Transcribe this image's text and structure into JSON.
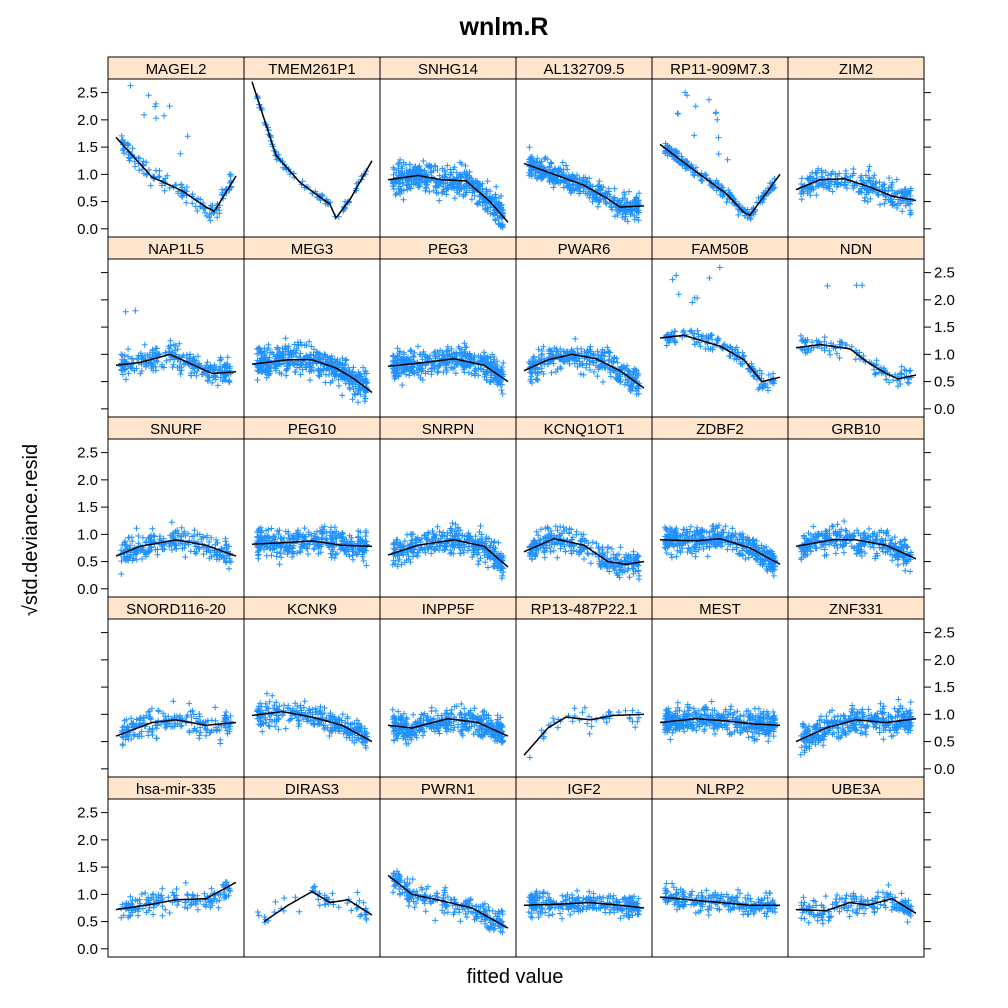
{
  "chart_data": {
    "type": "scatter",
    "title": "wnlm.R",
    "xlabel": "fitted value",
    "ylabel": "std.deviance.resid",
    "ylabel_prefix": "√",
    "ylim": [
      -0.15,
      2.75
    ],
    "y_ticks": [
      "0.0",
      "0.5",
      "1.0",
      "1.5",
      "2.0",
      "2.5"
    ],
    "layout": {
      "columns": 6,
      "rows": 5
    },
    "point_marker": "+",
    "point_color": "#1E90FF",
    "line_color": "#000000",
    "strip_color": "#FFE5CC",
    "grid": false,
    "panels": [
      {
        "name": "MAGEL2",
        "n": 140,
        "scatter": 0.22,
        "outliers": 10,
        "curve": [
          [
            0.0,
            1.68
          ],
          [
            0.3,
            0.95
          ],
          [
            0.55,
            0.7
          ],
          [
            0.75,
            0.4
          ],
          [
            0.82,
            0.32
          ],
          [
            1.0,
            0.97
          ]
        ]
      },
      {
        "name": "TMEM261P1",
        "n": 90,
        "scatter": 0.08,
        "outliers": 0,
        "curve": [
          [
            0.0,
            2.7
          ],
          [
            0.2,
            1.35
          ],
          [
            0.4,
            0.85
          ],
          [
            0.65,
            0.45
          ],
          [
            0.7,
            0.2
          ],
          [
            0.82,
            0.55
          ],
          [
            1.0,
            1.25
          ]
        ]
      },
      {
        "name": "SNHG14",
        "n": 480,
        "scatter": 0.35,
        "outliers": 0,
        "curve": [
          [
            0.0,
            0.9
          ],
          [
            0.25,
            0.98
          ],
          [
            0.45,
            0.9
          ],
          [
            0.65,
            0.88
          ],
          [
            0.85,
            0.5
          ],
          [
            1.0,
            0.12
          ]
        ]
      },
      {
        "name": "AL132709.5",
        "n": 420,
        "scatter": 0.28,
        "outliers": 0,
        "curve": [
          [
            0.0,
            1.2
          ],
          [
            0.25,
            1.0
          ],
          [
            0.5,
            0.8
          ],
          [
            0.7,
            0.55
          ],
          [
            0.8,
            0.4
          ],
          [
            1.0,
            0.42
          ]
        ]
      },
      {
        "name": "RP11-909M7.3",
        "n": 200,
        "scatter": 0.15,
        "outliers": 14,
        "curve": [
          [
            0.0,
            1.55
          ],
          [
            0.3,
            1.05
          ],
          [
            0.55,
            0.65
          ],
          [
            0.7,
            0.3
          ],
          [
            0.75,
            0.25
          ],
          [
            1.0,
            1.0
          ]
        ]
      },
      {
        "name": "ZIM2",
        "n": 260,
        "scatter": 0.3,
        "outliers": 0,
        "curve": [
          [
            0.0,
            0.72
          ],
          [
            0.2,
            0.9
          ],
          [
            0.4,
            0.92
          ],
          [
            0.6,
            0.78
          ],
          [
            0.8,
            0.6
          ],
          [
            1.0,
            0.52
          ]
        ]
      },
      {
        "name": "NAP1L5",
        "n": 260,
        "scatter": 0.3,
        "outliers": 2,
        "curve": [
          [
            0.0,
            0.8
          ],
          [
            0.2,
            0.85
          ],
          [
            0.45,
            1.0
          ],
          [
            0.6,
            0.85
          ],
          [
            0.8,
            0.65
          ],
          [
            1.0,
            0.68
          ]
        ]
      },
      {
        "name": "MEG3",
        "n": 480,
        "scatter": 0.35,
        "outliers": 0,
        "curve": [
          [
            0.0,
            0.82
          ],
          [
            0.3,
            0.9
          ],
          [
            0.5,
            0.9
          ],
          [
            0.7,
            0.75
          ],
          [
            0.85,
            0.55
          ],
          [
            1.0,
            0.3
          ]
        ]
      },
      {
        "name": "PEG3",
        "n": 440,
        "scatter": 0.32,
        "outliers": 0,
        "curve": [
          [
            0.0,
            0.78
          ],
          [
            0.3,
            0.85
          ],
          [
            0.55,
            0.92
          ],
          [
            0.8,
            0.8
          ],
          [
            1.0,
            0.5
          ]
        ]
      },
      {
        "name": "PWAR6",
        "n": 340,
        "scatter": 0.32,
        "outliers": 0,
        "curve": [
          [
            0.0,
            0.7
          ],
          [
            0.2,
            0.9
          ],
          [
            0.4,
            1.0
          ],
          [
            0.6,
            0.92
          ],
          [
            0.8,
            0.7
          ],
          [
            1.0,
            0.38
          ]
        ]
      },
      {
        "name": "FAM50B",
        "n": 160,
        "scatter": 0.2,
        "outliers": 8,
        "curve": [
          [
            0.0,
            1.3
          ],
          [
            0.2,
            1.35
          ],
          [
            0.5,
            1.15
          ],
          [
            0.7,
            0.9
          ],
          [
            0.85,
            0.5
          ],
          [
            1.0,
            0.58
          ]
        ]
      },
      {
        "name": "NDN",
        "n": 110,
        "scatter": 0.2,
        "outliers": 3,
        "curve": [
          [
            0.0,
            1.12
          ],
          [
            0.2,
            1.18
          ],
          [
            0.45,
            1.1
          ],
          [
            0.6,
            0.85
          ],
          [
            0.75,
            0.65
          ],
          [
            0.85,
            0.55
          ],
          [
            1.0,
            0.62
          ]
        ]
      },
      {
        "name": "SNURF",
        "n": 240,
        "scatter": 0.33,
        "outliers": 0,
        "curve": [
          [
            0.0,
            0.6
          ],
          [
            0.2,
            0.78
          ],
          [
            0.5,
            0.9
          ],
          [
            0.75,
            0.8
          ],
          [
            1.0,
            0.6
          ]
        ]
      },
      {
        "name": "PEG10",
        "n": 380,
        "scatter": 0.33,
        "outliers": 0,
        "curve": [
          [
            0.0,
            0.82
          ],
          [
            0.3,
            0.85
          ],
          [
            0.5,
            0.88
          ],
          [
            0.75,
            0.8
          ],
          [
            1.0,
            0.78
          ]
        ]
      },
      {
        "name": "SNRPN",
        "n": 400,
        "scatter": 0.32,
        "outliers": 0,
        "curve": [
          [
            0.0,
            0.62
          ],
          [
            0.25,
            0.8
          ],
          [
            0.55,
            0.9
          ],
          [
            0.8,
            0.78
          ],
          [
            1.0,
            0.4
          ]
        ]
      },
      {
        "name": "KCNQ1OT1",
        "n": 300,
        "scatter": 0.3,
        "outliers": 0,
        "curve": [
          [
            0.0,
            0.68
          ],
          [
            0.25,
            0.92
          ],
          [
            0.5,
            0.8
          ],
          [
            0.7,
            0.5
          ],
          [
            0.85,
            0.45
          ],
          [
            1.0,
            0.5
          ]
        ]
      },
      {
        "name": "ZDBF2",
        "n": 420,
        "scatter": 0.3,
        "outliers": 0,
        "curve": [
          [
            0.0,
            0.9
          ],
          [
            0.3,
            0.88
          ],
          [
            0.5,
            0.92
          ],
          [
            0.75,
            0.75
          ],
          [
            1.0,
            0.45
          ]
        ]
      },
      {
        "name": "GRB10",
        "n": 340,
        "scatter": 0.33,
        "outliers": 0,
        "curve": [
          [
            0.0,
            0.78
          ],
          [
            0.3,
            0.9
          ],
          [
            0.5,
            0.9
          ],
          [
            0.75,
            0.8
          ],
          [
            1.0,
            0.55
          ]
        ]
      },
      {
        "name": "SNORD116-20",
        "n": 200,
        "scatter": 0.3,
        "outliers": 0,
        "curve": [
          [
            0.0,
            0.6
          ],
          [
            0.3,
            0.85
          ],
          [
            0.5,
            0.9
          ],
          [
            0.75,
            0.8
          ],
          [
            1.0,
            0.85
          ]
        ]
      },
      {
        "name": "KCNK9",
        "n": 280,
        "scatter": 0.28,
        "outliers": 0,
        "curve": [
          [
            0.0,
            0.98
          ],
          [
            0.25,
            1.05
          ],
          [
            0.5,
            0.95
          ],
          [
            0.75,
            0.8
          ],
          [
            1.0,
            0.5
          ]
        ]
      },
      {
        "name": "INPP5F",
        "n": 420,
        "scatter": 0.3,
        "outliers": 0,
        "curve": [
          [
            0.0,
            0.8
          ],
          [
            0.2,
            0.75
          ],
          [
            0.5,
            0.92
          ],
          [
            0.75,
            0.85
          ],
          [
            1.0,
            0.6
          ]
        ]
      },
      {
        "name": "RP13-487P22.1",
        "n": 45,
        "scatter": 0.25,
        "outliers": 0,
        "curve": [
          [
            0.0,
            0.25
          ],
          [
            0.2,
            0.75
          ],
          [
            0.35,
            0.95
          ],
          [
            0.55,
            0.9
          ],
          [
            0.75,
            0.98
          ],
          [
            1.0,
            1.0
          ]
        ]
      },
      {
        "name": "MEST",
        "n": 440,
        "scatter": 0.32,
        "outliers": 0,
        "curve": [
          [
            0.0,
            0.85
          ],
          [
            0.3,
            0.92
          ],
          [
            0.55,
            0.88
          ],
          [
            0.8,
            0.82
          ],
          [
            1.0,
            0.8
          ]
        ]
      },
      {
        "name": "ZNF331",
        "n": 360,
        "scatter": 0.33,
        "outliers": 0,
        "curve": [
          [
            0.0,
            0.5
          ],
          [
            0.25,
            0.75
          ],
          [
            0.5,
            0.9
          ],
          [
            0.75,
            0.85
          ],
          [
            1.0,
            0.92
          ]
        ]
      },
      {
        "name": "hsa-mir-335",
        "n": 160,
        "scatter": 0.28,
        "outliers": 0,
        "curve": [
          [
            0.0,
            0.72
          ],
          [
            0.25,
            0.8
          ],
          [
            0.5,
            0.9
          ],
          [
            0.75,
            0.92
          ],
          [
            1.0,
            1.22
          ]
        ]
      },
      {
        "name": "DIRAS3",
        "n": 55,
        "scatter": 0.25,
        "outliers": 0,
        "curve": [
          [
            0.1,
            0.5
          ],
          [
            0.3,
            0.8
          ],
          [
            0.5,
            1.05
          ],
          [
            0.65,
            0.85
          ],
          [
            0.8,
            0.9
          ],
          [
            1.0,
            0.62
          ]
        ]
      },
      {
        "name": "PWRN1",
        "n": 240,
        "scatter": 0.28,
        "outliers": 0,
        "curve": [
          [
            0.0,
            1.35
          ],
          [
            0.2,
            1.0
          ],
          [
            0.45,
            0.88
          ],
          [
            0.7,
            0.75
          ],
          [
            1.0,
            0.38
          ]
        ]
      },
      {
        "name": "IGF2",
        "n": 280,
        "scatter": 0.25,
        "outliers": 0,
        "curve": [
          [
            0.0,
            0.8
          ],
          [
            0.3,
            0.82
          ],
          [
            0.55,
            0.85
          ],
          [
            0.8,
            0.8
          ],
          [
            1.0,
            0.75
          ]
        ]
      },
      {
        "name": "NLRP2",
        "n": 240,
        "scatter": 0.26,
        "outliers": 0,
        "curve": [
          [
            0.0,
            0.95
          ],
          [
            0.25,
            0.9
          ],
          [
            0.5,
            0.85
          ],
          [
            0.75,
            0.8
          ],
          [
            1.0,
            0.8
          ]
        ]
      },
      {
        "name": "UBE3A",
        "n": 180,
        "scatter": 0.28,
        "outliers": 0,
        "curve": [
          [
            0.0,
            0.72
          ],
          [
            0.25,
            0.7
          ],
          [
            0.45,
            0.85
          ],
          [
            0.6,
            0.8
          ],
          [
            0.8,
            0.92
          ],
          [
            1.0,
            0.65
          ]
        ]
      }
    ]
  }
}
